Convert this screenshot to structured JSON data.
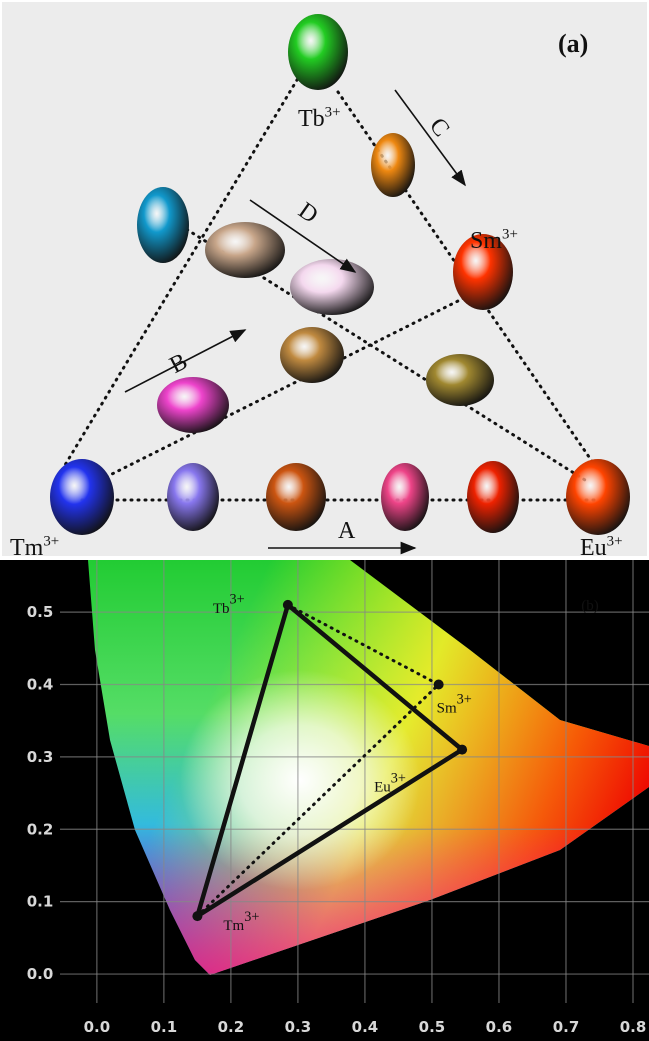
{
  "panel_a": {
    "label": "(a)",
    "ions": [
      {
        "base": "Tb",
        "charge": "3+"
      },
      {
        "base": "Sm",
        "charge": "3+"
      },
      {
        "base": "Tm",
        "charge": "3+"
      },
      {
        "base": "Eu",
        "charge": "3+"
      }
    ],
    "arrows": [
      "A",
      "B",
      "C",
      "D"
    ]
  },
  "chart_data": {
    "type": "scatter",
    "panel_label": "(b)",
    "x": [
      0.285,
      0.51,
      0.545,
      0.15
    ],
    "y": [
      0.51,
      0.4,
      0.31,
      0.08
    ],
    "point_labels": [
      {
        "base": "Tb",
        "charge": "3+"
      },
      {
        "base": "Sm",
        "charge": "3+"
      },
      {
        "base": "Eu",
        "charge": "3+"
      },
      {
        "base": "Tm",
        "charge": "3+"
      }
    ],
    "xlim": [
      -0.055,
      0.8
    ],
    "ylim": [
      -0.04,
      0.572
    ],
    "xticks": [
      {
        "value": 0,
        "label": "0.0"
      },
      0.1,
      0.2,
      0.3,
      0.4,
      0.5,
      0.6,
      0.7,
      0.8
    ],
    "yticks": [
      {
        "value": 0,
        "label": "0.0"
      },
      0.1,
      0.2,
      0.3,
      0.4,
      0.5
    ],
    "grid": true
  }
}
